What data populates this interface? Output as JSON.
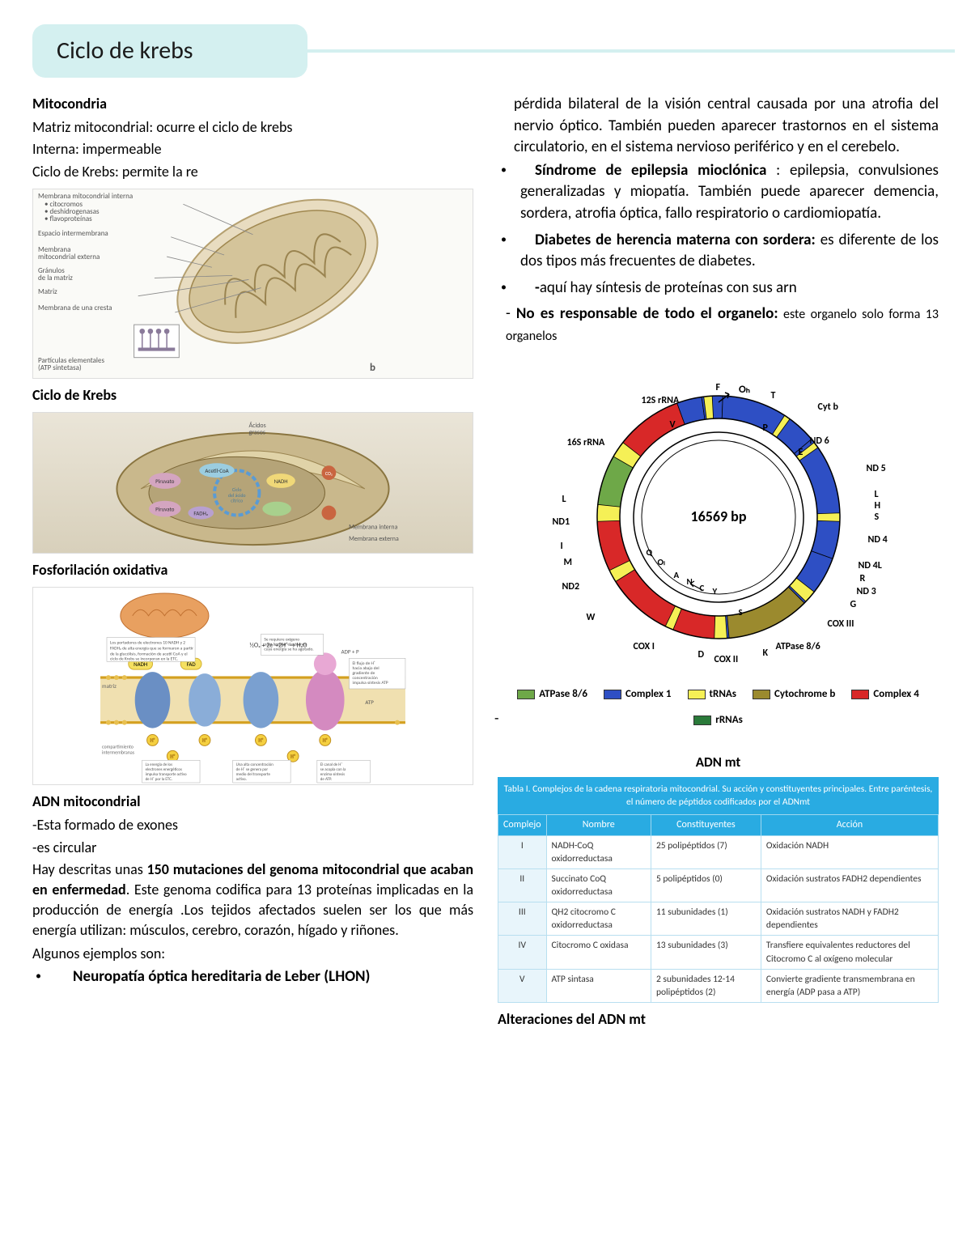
{
  "title": "Ciclo de krebs",
  "left": {
    "h_mito": "Mitocondria",
    "mito_l1": "Matriz mitocondrial: ocurre el ciclo de krebs",
    "mito_l2": "Interna: impermeable",
    "mito_l3": "Ciclo de Krebs: permite la re",
    "fig1_labels": {
      "a": "Membrana mitocondrial interna",
      "a2": "• citocromos",
      "a3": "• deshidrogenasas",
      "a4": "• flavoproteínas",
      "b": "Espacio intermembrana",
      "c": "Membrana",
      "c2": "mitocondrial externa",
      "d": "Gránulos",
      "d2": "de la matriz",
      "e": "Matriz",
      "f": "Membrana de una cresta",
      "g": "Partículas elementales",
      "g2": "(ATP sintetasa)",
      "corner": "b"
    },
    "h_krebs": "Ciclo de Krebs",
    "fig2_labels": {
      "acidos": "Ácidos grasos",
      "piruvato": "Piruvato",
      "acetil": "Acetil-CoA",
      "ciclo": "Ciclo del ácido cítrico",
      "nadh": "NADH",
      "fadh": "FADH₂",
      "co2": "CO₂",
      "ext": "Membrana externa",
      "int": "Membrana interna"
    },
    "h_oxphos": "Fosforilación oxidativa",
    "h_adn": "ADN mitocondrial",
    "adn_l1": "-Esta formado de exones",
    "adn_l2": "-es circular",
    "adn_para_pre": "Hay descritas unas ",
    "adn_para_bold": "150 mutaciones del genoma mitocondrial que acaban en enfermedad",
    "adn_para_post": ". Este genoma codifica para 13 proteínas implicadas en la producción de energía .Los tejidos afectados suelen ser los que más energía utilizan: músculos, cerebro, corazón, hígado y riñones.",
    "examples_intro": "Algunos ejemplos son:",
    "ex1": "Neuropatía óptica hereditaria de Leber (LHON)"
  },
  "right": {
    "para_top": " pérdida bilateral de la visión central causada por una atrofia del nervio óptico. También pueden aparecer trastornos en el sistema circulatorio, en el sistema nervioso periférico y en el cerebelo.",
    "b1_bold": "Síndrome de epilepsia mioclónica",
    "b1_rest": " : epilepsia, convulsiones generalizadas y miopatía. También puede aparecer demencia, sordera, atrofia óptica, fallo respiratorio o cardiomiopatía.",
    "b2_bold": "Diabetes de herencia materna con sordera:",
    "b2_rest": " es diferente de los dos tipos más frecuentes de diabetes.",
    "b3_bold": "-",
    "b3_rest": "aquí hay síntesis de proteínas con sus arn",
    "dash_bold": "No es responsable de todo el organelo:",
    "dash_rest": " este organelo solo forma 13 organelos",
    "mtdna": {
      "center": "16569 bp",
      "outer_labels": [
        "Oₕ",
        "F",
        "12S rRNA",
        "V",
        "16S rRNA",
        "L",
        "ND1",
        "I",
        "M",
        "ND2",
        "W",
        "COX I",
        "D",
        "COX II",
        "K",
        "ATPase 8/6",
        "COX III",
        "G",
        "ND3",
        "R",
        "ND4L",
        "ND4",
        "S",
        "H",
        "L",
        "ND5",
        "ND6",
        "E",
        "Cyt b",
        "P",
        "T"
      ],
      "inner_marks": [
        "Oₗ",
        "A",
        "N",
        "C",
        "Y",
        "S",
        "Q"
      ],
      "segments": [
        {
          "start": 355,
          "end": 395,
          "color": "#2a7a3a",
          "label": "12S rRNA"
        },
        {
          "start": 395,
          "end": 450,
          "color": "#2a7a3a",
          "label": "16S rRNA"
        },
        {
          "start": 450,
          "end": 490,
          "color": "#2e4fc4",
          "label": "ND1"
        },
        {
          "start": 490,
          "end": 540,
          "color": "#2e4fc4",
          "label": "ND2"
        },
        {
          "start": 540,
          "end": 600,
          "color": "#d82828",
          "label": "COX I"
        },
        {
          "start": 600,
          "end": 630,
          "color": "#d82828",
          "label": "COX II"
        },
        {
          "start": 630,
          "end": 665,
          "color": "#6ea848",
          "label": "ATPase 8/6"
        },
        {
          "start": 665,
          "end": 700,
          "color": "#d82828",
          "label": "COX III"
        },
        {
          "start": 700,
          "end": 712,
          "color": "#2e4fc4",
          "label": "ND3"
        },
        {
          "start": 712,
          "end": 722,
          "color": "#2e4fc4",
          "label": "ND4L"
        },
        {
          "start": 722,
          "end": 770,
          "color": "#2e4fc4",
          "label": "ND4"
        },
        {
          "start": 770,
          "end": 830,
          "color": "#2e4fc4",
          "label": "ND5"
        },
        {
          "start": 830,
          "end": 855,
          "color": "#2e4fc4",
          "label": "ND6"
        },
        {
          "start": 855,
          "end": 895,
          "color": "#9b8a2e",
          "label": "Cyt b"
        }
      ],
      "trna_color": "#f5f056",
      "legend": [
        {
          "color": "#6ea848",
          "label": "ATPase 8/6"
        },
        {
          "color": "#2e4fc4",
          "label": "Complex 1"
        },
        {
          "color": "#f5f056",
          "label": "tRNAs"
        },
        {
          "color": "#9b8a2e",
          "label": "Cytochrome b"
        },
        {
          "color": "#d82828",
          "label": "Complex 4"
        },
        {
          "color": "#2a7a3a",
          "label": "rRNAs"
        }
      ]
    },
    "caption_mtdna": "ADN mt",
    "table": {
      "caption": "Tabla I. Complejos de la cadena respiratoria mitocondrial. Su acción y constituyentes principales. Entre paréntesis, el número de péptidos codificados por el ADNmt",
      "headers": [
        "Complejo",
        "Nombre",
        "Constituyentes",
        "Acción"
      ],
      "rows": [
        [
          "I",
          "NADH-CoQ oxidorreductasa",
          "25 polipéptidos (7)",
          "Oxidación NADH"
        ],
        [
          "II",
          "Succinato CoQ oxidorreductasa",
          "5 polipéptidos (0)",
          "Oxidación sustratos FADH2 dependientes"
        ],
        [
          "III",
          "QH2 citocromo C oxidorreductasa",
          "11 subunidades (1)",
          "Oxidación sustratos NADH y FADH2 dependientes"
        ],
        [
          "IV",
          "Citocromo C oxidasa",
          "13 subunidades (3)",
          "Transfiere equivalentes reductores del Citocromo C al oxígeno molecular"
        ],
        [
          "V",
          "ATP sintasa",
          "2 subunidades 12-14 polipéptidos (2)",
          "Convierte gradiente transmembrana en energía (ADP pasa a ATP)"
        ]
      ]
    },
    "h_alter": "Alteraciones del ADN mt"
  },
  "colors": {
    "title_bg": "#d4f0f0",
    "table_header": "#29abe2"
  }
}
